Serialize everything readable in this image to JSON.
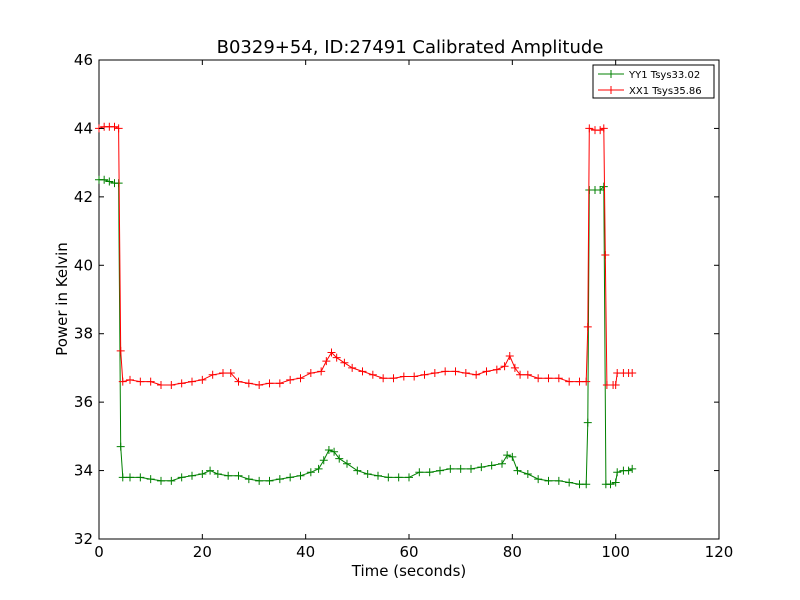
{
  "chart_data": {
    "type": "line",
    "title": "B0329+54, ID:27491 Calibrated Amplitude",
    "xlabel": "Time (seconds)",
    "ylabel": "Power in Kelvin",
    "xlim": [
      0,
      120
    ],
    "ylim": [
      32,
      46
    ],
    "xticks": [
      0,
      20,
      40,
      60,
      80,
      100,
      120
    ],
    "yticks": [
      32,
      34,
      36,
      38,
      40,
      42,
      44,
      46
    ],
    "grid": false,
    "legend_position": "top-right",
    "marker": "+",
    "series": [
      {
        "name": "YY1 Tsys33.02",
        "color": "#008000",
        "points": [
          [
            0.0,
            42.5
          ],
          [
            1.0,
            42.5
          ],
          [
            2.0,
            42.45
          ],
          [
            3.0,
            42.4
          ],
          [
            3.8,
            42.4
          ],
          [
            4.2,
            34.7
          ],
          [
            4.6,
            33.8
          ],
          [
            6.0,
            33.8
          ],
          [
            8.0,
            33.8
          ],
          [
            10.0,
            33.75
          ],
          [
            12.0,
            33.7
          ],
          [
            14.0,
            33.7
          ],
          [
            16.0,
            33.8
          ],
          [
            18.0,
            33.85
          ],
          [
            20.0,
            33.9
          ],
          [
            21.5,
            34.0
          ],
          [
            23.0,
            33.9
          ],
          [
            25.0,
            33.85
          ],
          [
            27.0,
            33.85
          ],
          [
            29.0,
            33.75
          ],
          [
            31.0,
            33.7
          ],
          [
            33.0,
            33.7
          ],
          [
            35.0,
            33.75
          ],
          [
            37.0,
            33.8
          ],
          [
            39.0,
            33.85
          ],
          [
            41.0,
            33.95
          ],
          [
            42.5,
            34.05
          ],
          [
            43.5,
            34.3
          ],
          [
            44.5,
            34.6
          ],
          [
            45.5,
            34.55
          ],
          [
            46.5,
            34.35
          ],
          [
            48.0,
            34.2
          ],
          [
            50.0,
            34.0
          ],
          [
            52.0,
            33.9
          ],
          [
            54.0,
            33.85
          ],
          [
            56.0,
            33.8
          ],
          [
            58.0,
            33.8
          ],
          [
            60.0,
            33.8
          ],
          [
            62.0,
            33.95
          ],
          [
            64.0,
            33.95
          ],
          [
            66.0,
            34.0
          ],
          [
            68.0,
            34.05
          ],
          [
            70.0,
            34.05
          ],
          [
            72.0,
            34.05
          ],
          [
            74.0,
            34.1
          ],
          [
            76.0,
            34.15
          ],
          [
            78.0,
            34.2
          ],
          [
            79.0,
            34.45
          ],
          [
            80.0,
            34.4
          ],
          [
            81.0,
            34.0
          ],
          [
            83.0,
            33.9
          ],
          [
            85.0,
            33.75
          ],
          [
            87.0,
            33.7
          ],
          [
            89.0,
            33.7
          ],
          [
            91.0,
            33.65
          ],
          [
            93.0,
            33.6
          ],
          [
            94.3,
            33.6
          ],
          [
            94.6,
            35.4
          ],
          [
            94.9,
            42.2
          ],
          [
            96.0,
            42.2
          ],
          [
            97.0,
            42.2
          ],
          [
            97.7,
            42.3
          ],
          [
            98.1,
            33.6
          ],
          [
            99.0,
            33.6
          ],
          [
            100.0,
            33.65
          ],
          [
            100.3,
            33.95
          ],
          [
            101.5,
            34.0
          ],
          [
            102.5,
            34.0
          ],
          [
            103.2,
            34.05
          ]
        ]
      },
      {
        "name": "XX1 Tsys35.86",
        "color": "#ff0000",
        "points": [
          [
            0.0,
            44.0
          ],
          [
            1.0,
            44.05
          ],
          [
            2.0,
            44.05
          ],
          [
            3.0,
            44.05
          ],
          [
            3.8,
            44.0
          ],
          [
            4.2,
            37.5
          ],
          [
            4.6,
            36.6
          ],
          [
            6.0,
            36.65
          ],
          [
            8.0,
            36.6
          ],
          [
            10.0,
            36.6
          ],
          [
            12.0,
            36.5
          ],
          [
            14.0,
            36.5
          ],
          [
            16.0,
            36.55
          ],
          [
            18.0,
            36.6
          ],
          [
            20.0,
            36.65
          ],
          [
            22.0,
            36.8
          ],
          [
            24.0,
            36.85
          ],
          [
            25.5,
            36.85
          ],
          [
            27.0,
            36.6
          ],
          [
            29.0,
            36.55
          ],
          [
            31.0,
            36.5
          ],
          [
            33.0,
            36.55
          ],
          [
            35.0,
            36.55
          ],
          [
            37.0,
            36.65
          ],
          [
            39.0,
            36.7
          ],
          [
            41.0,
            36.85
          ],
          [
            43.0,
            36.9
          ],
          [
            44.0,
            37.2
          ],
          [
            45.0,
            37.45
          ],
          [
            46.0,
            37.3
          ],
          [
            47.5,
            37.15
          ],
          [
            49.0,
            37.0
          ],
          [
            51.0,
            36.9
          ],
          [
            53.0,
            36.8
          ],
          [
            55.0,
            36.7
          ],
          [
            57.0,
            36.7
          ],
          [
            59.0,
            36.75
          ],
          [
            61.0,
            36.75
          ],
          [
            63.0,
            36.8
          ],
          [
            65.0,
            36.85
          ],
          [
            67.0,
            36.9
          ],
          [
            69.0,
            36.9
          ],
          [
            71.0,
            36.85
          ],
          [
            73.0,
            36.8
          ],
          [
            75.0,
            36.9
          ],
          [
            77.0,
            36.95
          ],
          [
            78.5,
            37.05
          ],
          [
            79.5,
            37.35
          ],
          [
            80.5,
            37.0
          ],
          [
            81.5,
            36.8
          ],
          [
            83.0,
            36.8
          ],
          [
            85.0,
            36.7
          ],
          [
            87.0,
            36.7
          ],
          [
            89.0,
            36.7
          ],
          [
            91.0,
            36.6
          ],
          [
            93.0,
            36.6
          ],
          [
            94.3,
            36.6
          ],
          [
            94.6,
            38.2
          ],
          [
            94.9,
            44.0
          ],
          [
            96.0,
            43.95
          ],
          [
            97.0,
            43.95
          ],
          [
            97.7,
            44.0
          ],
          [
            98.0,
            40.3
          ],
          [
            98.3,
            36.5
          ],
          [
            99.5,
            36.5
          ],
          [
            100.0,
            36.5
          ],
          [
            100.3,
            36.85
          ],
          [
            101.5,
            36.85
          ],
          [
            102.5,
            36.85
          ],
          [
            103.2,
            36.85
          ]
        ]
      }
    ]
  }
}
